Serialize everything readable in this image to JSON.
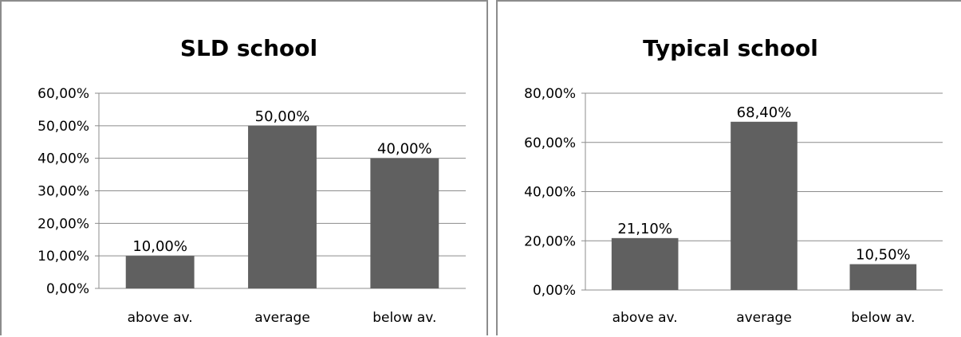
{
  "chart_data": [
    {
      "type": "bar",
      "title": "SLD school",
      "categories": [
        "above av.",
        "average",
        "below av."
      ],
      "values": [
        10.0,
        50.0,
        40.0
      ],
      "value_labels": [
        "10,00%",
        "50,00%",
        "40,00%"
      ],
      "y_ticks": [
        "0,00%",
        "10,00%",
        "20,00%",
        "30,00%",
        "40,00%",
        "50,00%",
        "60,00%"
      ],
      "ylim": [
        0,
        60
      ],
      "grid": true,
      "bar_color": "#606060"
    },
    {
      "type": "bar",
      "title": "Typical school",
      "categories": [
        "above av.",
        "average",
        "below av."
      ],
      "values": [
        21.1,
        68.4,
        10.5
      ],
      "value_labels": [
        "21,10%",
        "68,40%",
        "10,50%"
      ],
      "y_ticks": [
        "0,00%",
        "20,00%",
        "40,00%",
        "60,00%",
        "80,00%"
      ],
      "ylim": [
        0,
        80
      ],
      "grid": true,
      "bar_color": "#606060"
    }
  ]
}
